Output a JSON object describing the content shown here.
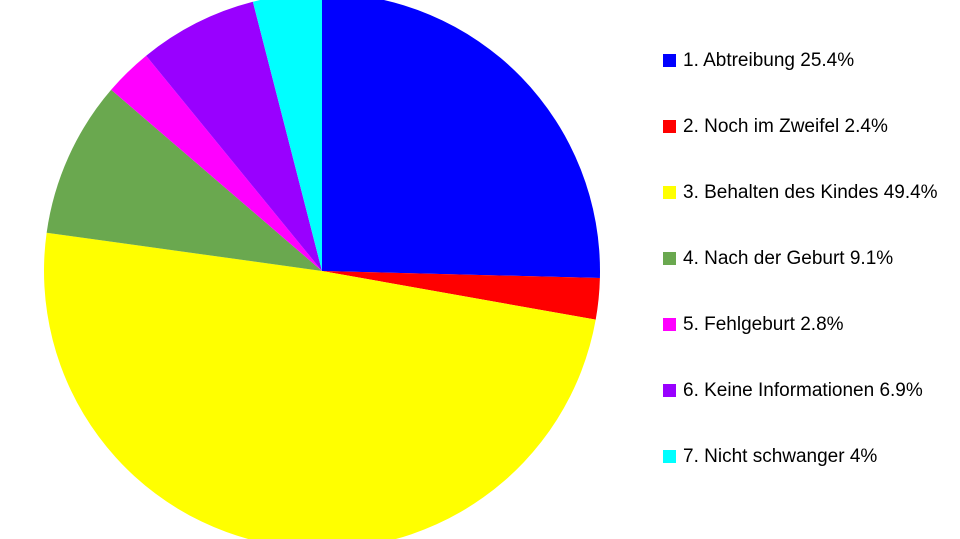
{
  "chart_data": {
    "type": "pie",
    "categories": [
      "1. Abtreibung 25.4%",
      "2. Noch im Zweifel 2.4%",
      "3. Behalten des Kindes 49.4%",
      "4. Nach der Geburt 9.1%",
      "5. Fehlgeburt 2.8%",
      "6. Keine Informationen 6.9%",
      "7. Nicht schwanger 4%"
    ],
    "values": [
      25.4,
      2.4,
      49.4,
      9.1,
      2.8,
      6.9,
      4
    ],
    "colors": [
      "#0000ff",
      "#ff0000",
      "#ffff00",
      "#6aa84f",
      "#ff00ff",
      "#9900ff",
      "#00ffff"
    ],
    "legend": "right"
  }
}
